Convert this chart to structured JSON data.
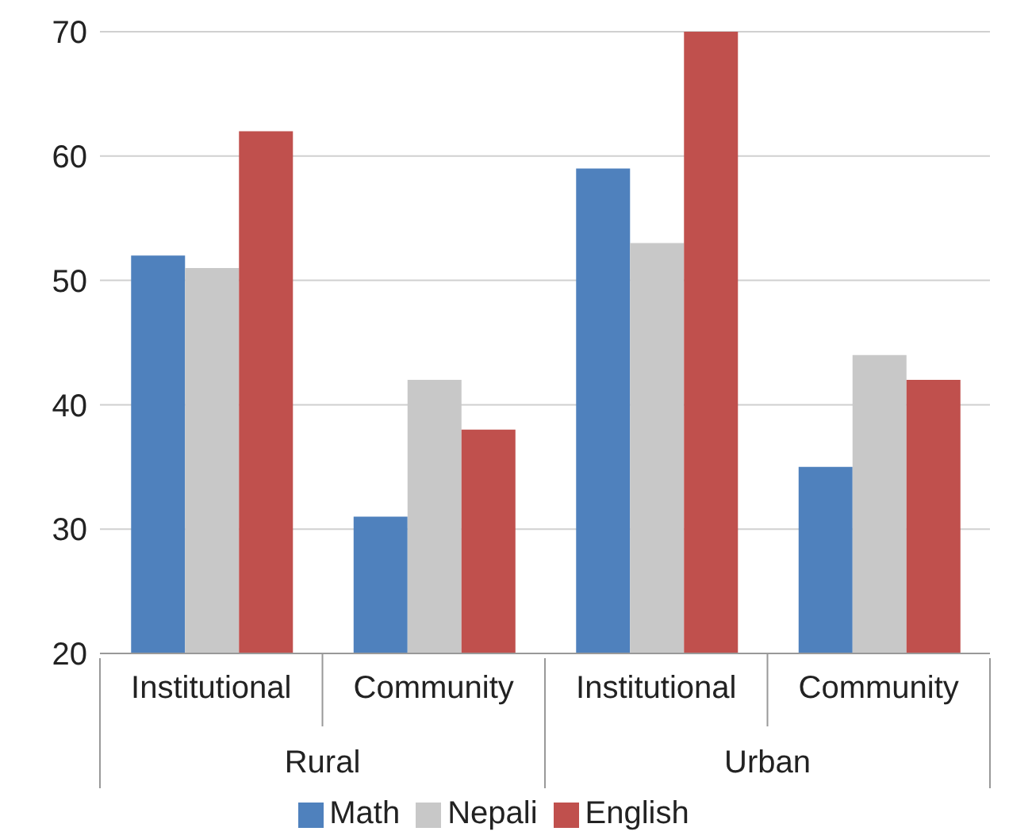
{
  "chart_data": {
    "type": "bar",
    "categories": [
      "Institutional",
      "Community",
      "Institutional",
      "Community"
    ],
    "annotations": [
      "Rural",
      "Urban"
    ],
    "series": [
      {
        "name": "Math",
        "color": "#4f81bd",
        "values": [
          52,
          31,
          59,
          35
        ]
      },
      {
        "name": "Nepali",
        "color": "#c8c8c8",
        "values": [
          51,
          42,
          53,
          44
        ]
      },
      {
        "name": "English",
        "color": "#c0504d",
        "values": [
          62,
          38,
          70,
          42
        ]
      }
    ],
    "ylim": [
      20,
      70
    ],
    "yticks": [
      20,
      30,
      40,
      50,
      60,
      70
    ],
    "grid": "y",
    "legend": "bottom"
  }
}
